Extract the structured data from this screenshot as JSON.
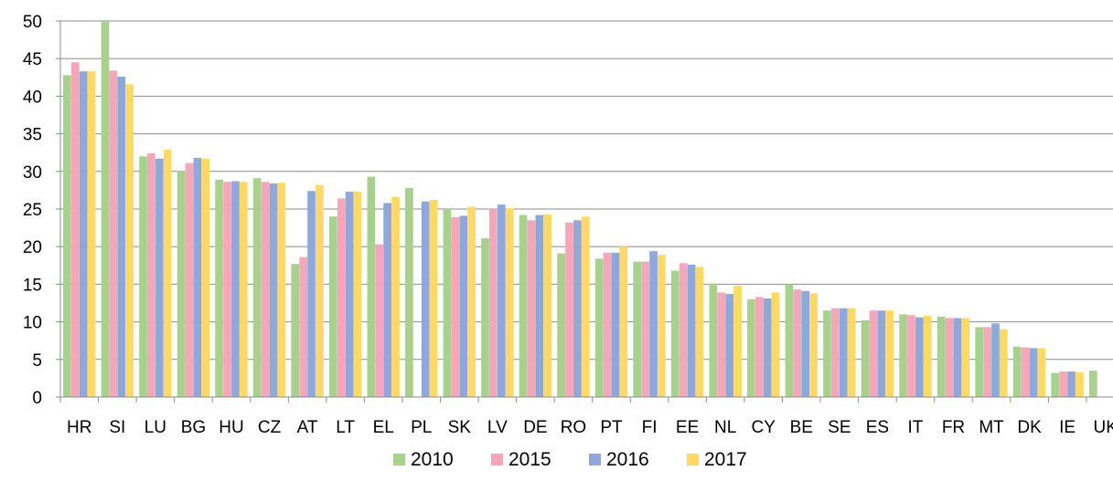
{
  "chart_data": {
    "type": "bar",
    "title": "",
    "xlabel": "",
    "ylabel": "",
    "ylim": [
      0,
      50
    ],
    "yticks": [
      0,
      5,
      10,
      15,
      20,
      25,
      30,
      35,
      40,
      45,
      50
    ],
    "grid": "horizontal",
    "legend_position": "bottom",
    "categories": [
      "HR",
      "SI",
      "LU",
      "BG",
      "HU",
      "CZ",
      "AT",
      "LT",
      "EL",
      "PL",
      "SK",
      "LV",
      "DE",
      "RO",
      "PT",
      "FI",
      "EE",
      "NL",
      "CY",
      "BE",
      "SE",
      "ES",
      "IT",
      "FR",
      "MT",
      "DK",
      "IE",
      "UK"
    ],
    "series": [
      {
        "name": "2010",
        "color": "#a9d18e",
        "values": [
          42.8,
          50.0,
          32.0,
          30.1,
          28.9,
          29.1,
          17.7,
          24.0,
          29.3,
          27.8,
          25.0,
          21.1,
          24.2,
          19.1,
          18.4,
          18.0,
          16.8,
          15.1,
          13.0,
          15.0,
          11.5,
          10.2,
          11.0,
          10.7,
          9.3,
          6.7,
          3.2,
          3.5
        ]
      },
      {
        "name": "2015",
        "color": "#f4a7b9",
        "values": [
          44.5,
          43.4,
          32.4,
          31.1,
          28.6,
          28.6,
          18.6,
          26.4,
          20.3,
          null,
          23.9,
          25.1,
          23.5,
          23.2,
          19.2,
          18.0,
          17.8,
          13.9,
          13.3,
          14.3,
          11.8,
          11.5,
          10.9,
          10.5,
          9.3,
          6.6,
          3.4,
          null
        ]
      },
      {
        "name": "2016",
        "color": "#8fa8dc",
        "values": [
          43.3,
          42.6,
          31.7,
          31.8,
          28.7,
          28.4,
          27.4,
          27.3,
          25.8,
          26.0,
          24.1,
          25.6,
          24.2,
          23.5,
          19.2,
          19.4,
          17.6,
          13.7,
          13.1,
          14.1,
          11.8,
          11.5,
          10.6,
          10.5,
          9.8,
          6.5,
          3.4,
          null
        ]
      },
      {
        "name": "2017",
        "color": "#ffd966",
        "values": [
          43.3,
          41.6,
          32.9,
          31.7,
          28.6,
          28.5,
          28.2,
          27.3,
          26.6,
          26.2,
          25.3,
          25.1,
          24.3,
          24.0,
          20.0,
          18.9,
          17.3,
          14.8,
          13.9,
          13.8,
          11.8,
          11.5,
          10.8,
          10.5,
          9.0,
          6.5,
          3.3,
          null
        ]
      }
    ]
  }
}
